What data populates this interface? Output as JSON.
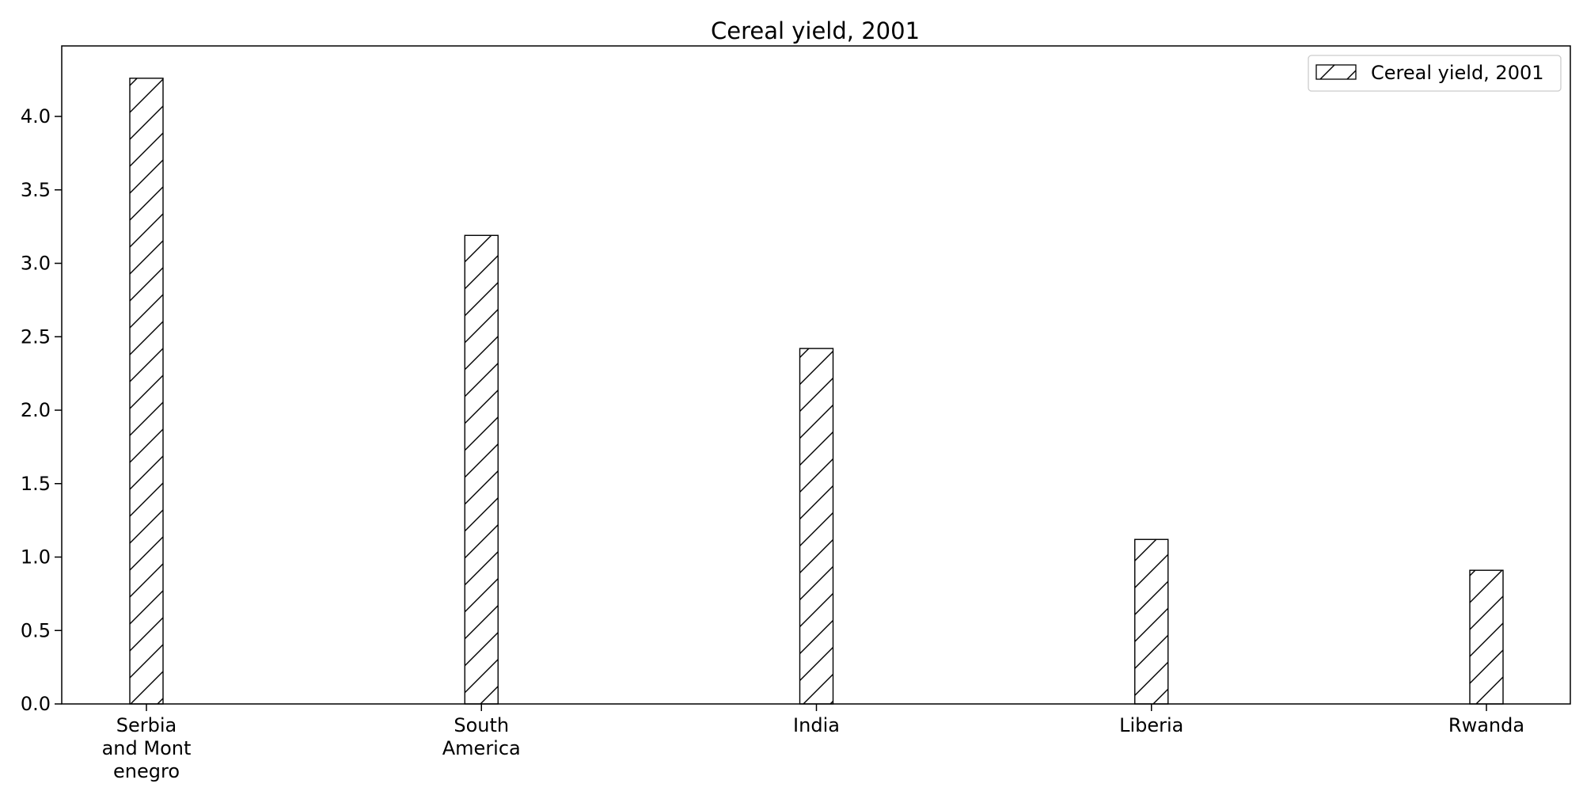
{
  "chart_data": {
    "type": "bar",
    "title": "Cereal yield, 2001",
    "xlabel": "",
    "ylabel": "",
    "categories": [
      [
        "Serbia",
        "and Mont",
        "enegro"
      ],
      [
        "South",
        "America"
      ],
      [
        "India"
      ],
      [
        "Liberia"
      ],
      [
        "Rwanda"
      ]
    ],
    "series": [
      {
        "name": "Cereal yield, 2001",
        "values": [
          4.26,
          3.19,
          2.42,
          1.12,
          0.91
        ],
        "fill": "#ffffff",
        "edge": "#000000",
        "hatch": "diagonal"
      }
    ],
    "ylim": [
      0,
      4.48
    ],
    "yticks": [
      "0.0",
      "0.5",
      "1.0",
      "1.5",
      "2.0",
      "2.5",
      "3.0",
      "3.5",
      "4.0"
    ],
    "grid": false,
    "legend": "top-right"
  }
}
